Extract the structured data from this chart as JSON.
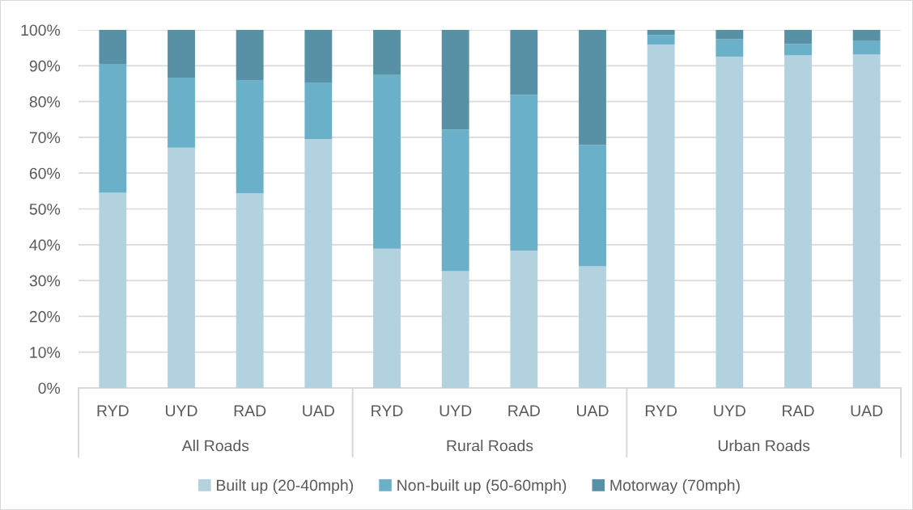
{
  "chart_data": {
    "type": "bar",
    "stacked": true,
    "categories": [
      "RYD",
      "UYD",
      "RAD",
      "UAD",
      "RYD",
      "UYD",
      "RAD",
      "UAD",
      "RYD",
      "UYD",
      "RAD",
      "UAD"
    ],
    "annotations": [
      "All Roads",
      "Rural Roads",
      "Urban Roads"
    ],
    "series": [
      {
        "name": "Built up (20-40mph)",
        "color": "#b3d2df",
        "values": [
          54.5,
          67.1,
          54.4,
          69.5,
          38.9,
          32.6,
          38.3,
          34.0,
          95.9,
          92.5,
          92.9,
          93.1
        ]
      },
      {
        "name": "Non-built up (50-60mph)",
        "color": "#6bb0c9",
        "values": [
          36.0,
          19.6,
          31.6,
          15.8,
          48.5,
          39.6,
          43.6,
          33.9,
          2.7,
          4.9,
          3.2,
          3.8
        ]
      },
      {
        "name": "Motorway (70mph)",
        "color": "#5891a6",
        "values": [
          9.5,
          13.3,
          14.0,
          14.7,
          12.6,
          27.8,
          18.1,
          32.1,
          1.4,
          2.6,
          3.9,
          3.1
        ]
      }
    ],
    "ylim": [
      0,
      100
    ],
    "yticks": [
      {
        "value": 0,
        "label": "0%"
      },
      {
        "value": 10,
        "label": "10%"
      },
      {
        "value": 20,
        "label": "20%"
      },
      {
        "value": 30,
        "label": "30%"
      },
      {
        "value": 40,
        "label": "40%"
      },
      {
        "value": 50,
        "label": "50%"
      },
      {
        "value": 60,
        "label": "60%"
      },
      {
        "value": 70,
        "label": "70%"
      },
      {
        "value": 80,
        "label": "80%"
      },
      {
        "value": 90,
        "label": "90%"
      },
      {
        "value": 100,
        "label": "100%"
      }
    ],
    "grid": "y",
    "legend": "bottom"
  }
}
